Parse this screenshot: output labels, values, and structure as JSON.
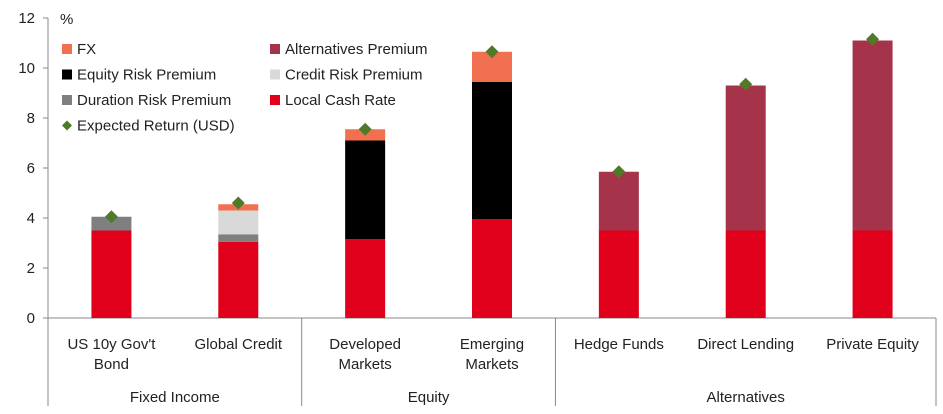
{
  "chart_data": {
    "type": "bar",
    "stacked": true,
    "ylabel": "%",
    "ylim": [
      0,
      12
    ],
    "yticks": [
      0,
      2,
      4,
      6,
      8,
      10,
      12
    ],
    "grid": false,
    "legend_position": "top-left",
    "categories": [
      "US 10y Gov't Bond",
      "Global Credit",
      "Developed Markets",
      "Emerging Markets",
      "Hedge Funds",
      "Direct Lending",
      "Private Equity"
    ],
    "category_lines": [
      [
        "US 10y Gov't",
        "Bond"
      ],
      [
        "Global Credit"
      ],
      [
        "Developed",
        "Markets"
      ],
      [
        "Emerging",
        "Markets"
      ],
      [
        "Hedge Funds"
      ],
      [
        "Direct Lending"
      ],
      [
        "Private Equity"
      ]
    ],
    "groups": [
      {
        "label": "Fixed Income",
        "categories": [
          0,
          1
        ]
      },
      {
        "label": "Equity",
        "categories": [
          2,
          3
        ]
      },
      {
        "label": "Alternatives",
        "categories": [
          4,
          5,
          6
        ]
      }
    ],
    "series": [
      {
        "name": "Local Cash Rate",
        "color": "#e0001b",
        "values": [
          3.5,
          3.05,
          3.15,
          3.95,
          3.5,
          3.5,
          3.5
        ]
      },
      {
        "name": "Duration Risk Premium",
        "color": "#7f7f7f",
        "values": [
          0.55,
          0.3,
          0,
          0,
          0,
          0,
          0
        ]
      },
      {
        "name": "Credit Risk Premium",
        "color": "#d9d9d9",
        "values": [
          0,
          0.95,
          0,
          0,
          0,
          0,
          0
        ]
      },
      {
        "name": "Equity Risk Premium",
        "color": "#000000",
        "values": [
          0,
          0,
          3.95,
          5.5,
          0,
          0,
          0
        ]
      },
      {
        "name": "Alternatives Premium",
        "color": "#a5344a",
        "values": [
          0,
          0,
          0,
          0,
          2.35,
          5.8,
          7.6
        ]
      },
      {
        "name": "FX",
        "color": "#f07050",
        "values": [
          0,
          0.25,
          0.45,
          1.2,
          0,
          0,
          0
        ]
      }
    ],
    "markers": {
      "name": "Expected Return (USD)",
      "color": "#4f7a28",
      "values": [
        4.05,
        4.6,
        7.55,
        10.65,
        5.85,
        9.35,
        11.15
      ]
    },
    "legend": [
      {
        "name": "FX",
        "kind": "square",
        "color": "#f07050"
      },
      {
        "name": "Alternatives Premium",
        "kind": "square",
        "color": "#a5344a"
      },
      {
        "name": "Equity Risk Premium",
        "kind": "square",
        "color": "#000000"
      },
      {
        "name": "Credit Risk Premium",
        "kind": "square",
        "color": "#d9d9d9"
      },
      {
        "name": "Duration Risk Premium",
        "kind": "square",
        "color": "#7f7f7f"
      },
      {
        "name": "Local Cash Rate",
        "kind": "square",
        "color": "#e0001b"
      },
      {
        "name": "Expected Return (USD)",
        "kind": "diamond",
        "color": "#4f7a28"
      }
    ]
  }
}
